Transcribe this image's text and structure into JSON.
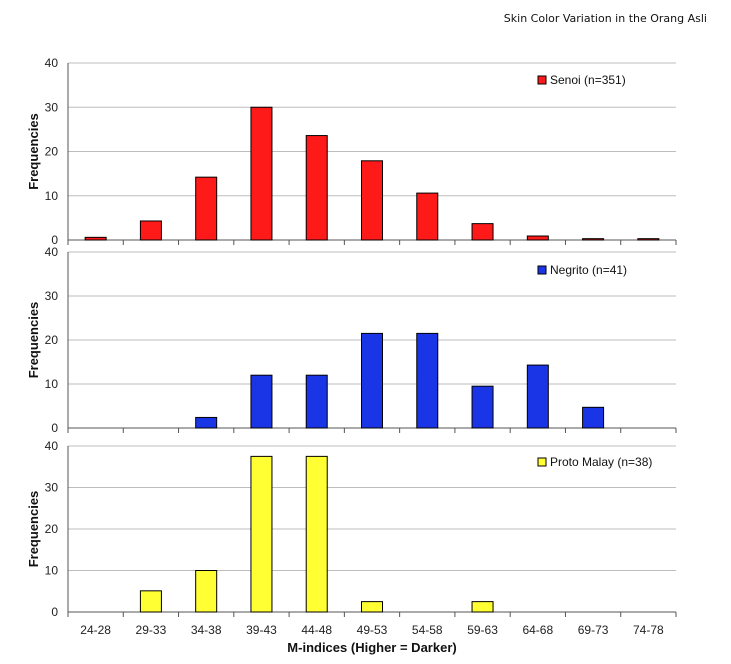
{
  "page": {
    "header": "Skin Color Variation in the Orang Asli"
  },
  "chart_data": {
    "type": "bar",
    "layout": "three vertically stacked histogram panels sharing x categories",
    "categories": [
      "24-28",
      "29-33",
      "34-38",
      "39-43",
      "44-48",
      "49-53",
      "54-58",
      "59-63",
      "64-68",
      "69-73",
      "74-78"
    ],
    "xlabel": "M-indices (Higher = Darker)",
    "ylabel": "Frequencies",
    "grid": "horizontal",
    "legend_position": "top-right",
    "panels": [
      {
        "name": "Senoi (n=351)",
        "color": "#ff1a1a",
        "ylim": [
          0,
          40
        ],
        "yticks": [
          0,
          10,
          20,
          30,
          40
        ],
        "values": [
          0.6,
          4.3,
          14.2,
          30.0,
          23.6,
          17.9,
          10.6,
          3.7,
          0.9,
          0.3,
          0.3
        ]
      },
      {
        "name": "Negrito (n=41)",
        "color": "#1a35e6",
        "ylim": [
          0,
          40
        ],
        "yticks": [
          0,
          10,
          20,
          30,
          40
        ],
        "values": [
          0,
          0,
          2.4,
          12.0,
          12.0,
          21.5,
          21.5,
          9.5,
          14.3,
          4.7,
          0
        ]
      },
      {
        "name": "Proto Malay (n=38)",
        "color": "#ffff33",
        "ylim": [
          0,
          40
        ],
        "yticks": [
          0,
          10,
          20,
          30,
          40
        ],
        "values": [
          0,
          5.1,
          10.0,
          37.5,
          37.5,
          2.5,
          0,
          2.5,
          0,
          0,
          0
        ]
      }
    ]
  }
}
